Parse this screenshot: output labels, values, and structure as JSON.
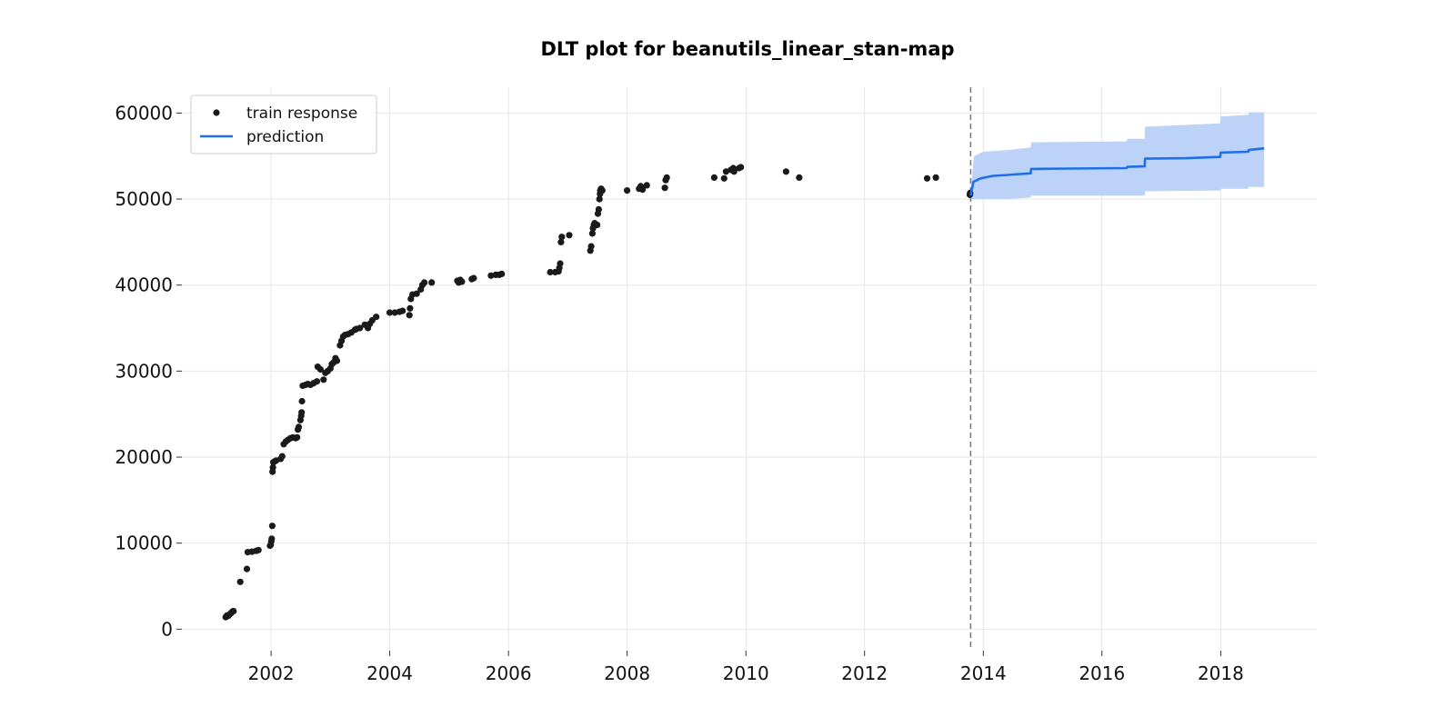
{
  "chart_data": {
    "type": "scatter",
    "title": "DLT plot for beanutils_linear_stan-map",
    "xlabel": "",
    "ylabel": "",
    "xlim": [
      "2000-07-01",
      "2019-08-15"
    ],
    "ylim": [
      -2500,
      63000
    ],
    "x_ticks": [
      "2002",
      "2004",
      "2006",
      "2008",
      "2010",
      "2012",
      "2014",
      "2016",
      "2018"
    ],
    "y_ticks": [
      "0",
      "10000",
      "20000",
      "30000",
      "40000",
      "50000",
      "60000"
    ],
    "grid": true,
    "legend": {
      "position": "top-left",
      "entries": [
        "train response",
        "prediction"
      ]
    },
    "train_cutoff": "2013-10-15",
    "colors": {
      "train": "#1a1a1a",
      "prediction": "#1f6fe5",
      "band": "#bcd2f7",
      "cutoff": "#777777",
      "grid": "#e6e6e6"
    },
    "series": [
      {
        "name": "train response",
        "kind": "scatter",
        "points": [
          [
            "2001-03-28",
            1400
          ],
          [
            "2001-04-05",
            1600
          ],
          [
            "2001-04-12",
            1550
          ],
          [
            "2001-04-20",
            1700
          ],
          [
            "2001-05-01",
            1900
          ],
          [
            "2001-05-08",
            2050
          ],
          [
            "2001-05-15",
            2100
          ],
          [
            "2001-06-25",
            5500
          ],
          [
            "2001-08-05",
            7000
          ],
          [
            "2001-08-10",
            8950
          ],
          [
            "2001-09-05",
            9000
          ],
          [
            "2001-10-01",
            9100
          ],
          [
            "2001-10-15",
            9200
          ],
          [
            "2001-12-25",
            9700
          ],
          [
            "2001-12-30",
            9800
          ],
          [
            "2002-01-02",
            10200
          ],
          [
            "2002-01-05",
            10500
          ],
          [
            "2002-01-08",
            12000
          ],
          [
            "2002-01-10",
            18300
          ],
          [
            "2002-01-12",
            18800
          ],
          [
            "2002-01-15",
            19400
          ],
          [
            "2002-01-22",
            19500
          ],
          [
            "2002-02-01",
            19600
          ],
          [
            "2002-03-01",
            19800
          ],
          [
            "2002-03-10",
            20100
          ],
          [
            "2002-03-20",
            21500
          ],
          [
            "2002-04-01",
            21800
          ],
          [
            "2002-04-15",
            22000
          ],
          [
            "2002-05-01",
            22200
          ],
          [
            "2002-05-15",
            22300
          ],
          [
            "2002-06-01",
            22200
          ],
          [
            "2002-06-10",
            22300
          ],
          [
            "2002-06-15",
            23200
          ],
          [
            "2002-06-20",
            23500
          ],
          [
            "2002-07-01",
            24300
          ],
          [
            "2002-07-05",
            24800
          ],
          [
            "2002-07-08",
            25200
          ],
          [
            "2002-07-10",
            26500
          ],
          [
            "2002-07-15",
            28300
          ],
          [
            "2002-08-01",
            28400
          ],
          [
            "2002-08-15",
            28500
          ],
          [
            "2002-09-01",
            28400
          ],
          [
            "2002-09-20",
            28600
          ],
          [
            "2002-10-10",
            28800
          ],
          [
            "2002-10-15",
            30500
          ],
          [
            "2002-11-01",
            30200
          ],
          [
            "2002-11-20",
            29000
          ],
          [
            "2002-12-01",
            29800
          ],
          [
            "2002-12-15",
            30000
          ],
          [
            "2003-01-01",
            30300
          ],
          [
            "2003-01-10",
            30800
          ],
          [
            "2003-01-20",
            31000
          ],
          [
            "2003-02-01",
            31500
          ],
          [
            "2003-02-10",
            31200
          ],
          [
            "2003-03-01",
            33000
          ],
          [
            "2003-03-10",
            33500
          ],
          [
            "2003-03-20",
            34000
          ],
          [
            "2003-04-01",
            34200
          ],
          [
            "2003-04-20",
            34300
          ],
          [
            "2003-05-10",
            34500
          ],
          [
            "2003-06-01",
            34800
          ],
          [
            "2003-06-10",
            34900
          ],
          [
            "2003-07-01",
            35000
          ],
          [
            "2003-08-01",
            35400
          ],
          [
            "2003-08-20",
            35000
          ],
          [
            "2003-09-01",
            35500
          ],
          [
            "2003-09-15",
            35900
          ],
          [
            "2003-10-10",
            36300
          ],
          [
            "2004-01-01",
            36800
          ],
          [
            "2004-02-01",
            36800
          ],
          [
            "2004-03-01",
            36900
          ],
          [
            "2004-03-20",
            37000
          ],
          [
            "2004-05-01",
            36500
          ],
          [
            "2004-05-05",
            37300
          ],
          [
            "2004-05-10",
            38400
          ],
          [
            "2004-05-20",
            38900
          ],
          [
            "2004-06-15",
            39000
          ],
          [
            "2004-07-10",
            39500
          ],
          [
            "2004-07-20",
            40000
          ],
          [
            "2004-08-01",
            40300
          ],
          [
            "2004-09-15",
            40300
          ],
          [
            "2005-02-20",
            40500
          ],
          [
            "2005-03-01",
            40300
          ],
          [
            "2005-03-10",
            40600
          ],
          [
            "2005-03-20",
            40400
          ],
          [
            "2005-05-20",
            40700
          ],
          [
            "2005-06-01",
            40800
          ],
          [
            "2005-09-15",
            41100
          ],
          [
            "2005-10-15",
            41200
          ],
          [
            "2005-11-05",
            41200
          ],
          [
            "2005-11-20",
            41300
          ],
          [
            "2006-09-15",
            41500
          ],
          [
            "2006-10-15",
            41500
          ],
          [
            "2006-11-05",
            41600
          ],
          [
            "2006-11-10",
            42000
          ],
          [
            "2006-11-15",
            42500
          ],
          [
            "2006-11-20",
            45000
          ],
          [
            "2006-11-25",
            45600
          ],
          [
            "2007-01-10",
            45800
          ],
          [
            "2007-05-20",
            44000
          ],
          [
            "2007-05-25",
            44500
          ],
          [
            "2007-06-01",
            46000
          ],
          [
            "2007-06-05",
            46600
          ],
          [
            "2007-06-10",
            47000
          ],
          [
            "2007-06-15",
            47200
          ],
          [
            "2007-07-01",
            47000
          ],
          [
            "2007-07-05",
            48300
          ],
          [
            "2007-07-10",
            48800
          ],
          [
            "2007-07-15",
            50000
          ],
          [
            "2007-07-18",
            50600
          ],
          [
            "2007-07-20",
            51000
          ],
          [
            "2007-07-25",
            51200
          ],
          [
            "2007-08-01",
            51000
          ],
          [
            "2008-01-01",
            51000
          ],
          [
            "2008-03-15",
            51200
          ],
          [
            "2008-03-25",
            51500
          ],
          [
            "2008-04-05",
            51100
          ],
          [
            "2008-05-01",
            51600
          ],
          [
            "2008-08-20",
            51300
          ],
          [
            "2008-08-25",
            52200
          ],
          [
            "2008-09-01",
            52500
          ],
          [
            "2009-06-20",
            52500
          ],
          [
            "2009-08-20",
            52400
          ],
          [
            "2009-09-01",
            53200
          ],
          [
            "2009-10-01",
            53400
          ],
          [
            "2009-10-15",
            53600
          ],
          [
            "2009-10-20",
            53200
          ],
          [
            "2009-11-20",
            53600
          ],
          [
            "2009-12-01",
            53700
          ],
          [
            "2010-09-05",
            53200
          ],
          [
            "2010-11-25",
            52500
          ],
          [
            "2013-01-20",
            52400
          ],
          [
            "2013-03-15",
            52500
          ],
          [
            "2013-10-10",
            50500
          ],
          [
            "2013-10-12",
            50700
          ]
        ]
      },
      {
        "name": "prediction",
        "kind": "line",
        "points": [
          [
            "2013-10-15",
            50400
          ],
          [
            "2013-11-01",
            52000
          ],
          [
            "2013-12-15",
            52400
          ],
          [
            "2014-03-01",
            52700
          ],
          [
            "2014-06-01",
            52800
          ],
          [
            "2014-10-20",
            53000
          ],
          [
            "2014-10-22",
            53500
          ],
          [
            "2015-06-01",
            53550
          ],
          [
            "2016-06-01",
            53600
          ],
          [
            "2016-06-05",
            53750
          ],
          [
            "2016-09-20",
            53800
          ],
          [
            "2016-09-22",
            54700
          ],
          [
            "2017-06-01",
            54750
          ],
          [
            "2017-12-28",
            54900
          ],
          [
            "2018-01-01",
            55400
          ],
          [
            "2018-06-20",
            55500
          ],
          [
            "2018-06-22",
            55700
          ],
          [
            "2018-09-25",
            55900
          ]
        ],
        "band": [
          [
            "2013-10-15",
            50000,
            51000
          ],
          [
            "2013-11-05",
            50000,
            55000
          ],
          [
            "2014-01-01",
            50000,
            55500
          ],
          [
            "2014-06-01",
            50000,
            55700
          ],
          [
            "2014-10-20",
            50200,
            56000
          ],
          [
            "2014-10-22",
            50400,
            56600
          ],
          [
            "2016-06-01",
            50400,
            56700
          ],
          [
            "2016-06-05",
            50400,
            57000
          ],
          [
            "2016-09-20",
            50400,
            57000
          ],
          [
            "2016-09-22",
            50900,
            58400
          ],
          [
            "2017-12-28",
            51000,
            58800
          ],
          [
            "2018-01-01",
            51200,
            59600
          ],
          [
            "2018-06-20",
            51200,
            59800
          ],
          [
            "2018-06-22",
            51400,
            60100
          ],
          [
            "2018-09-25",
            51400,
            60100
          ]
        ]
      }
    ]
  }
}
